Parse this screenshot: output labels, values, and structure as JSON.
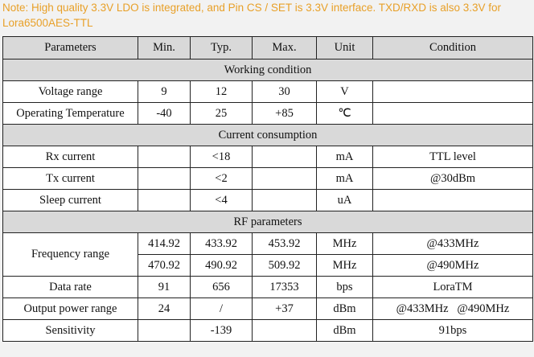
{
  "note": "Note: High quality 3.3V LDO is integrated, and Pin CS / SET is 3.3V interface. TXD/RXD is also 3.3V for Lora6500AES-TTL",
  "headers": [
    "Parameters",
    "Min.",
    "Typ.",
    "Max.",
    "Unit",
    "Condition"
  ],
  "sections": {
    "working": "Working condition",
    "current": "Current consumption",
    "rf": "RF parameters"
  },
  "rows": {
    "voltage": {
      "param": "Voltage range",
      "min": "9",
      "typ": "12",
      "max": "30",
      "unit": "V",
      "cond": ""
    },
    "temp": {
      "param": "Operating Temperature",
      "min": "-40",
      "typ": "25",
      "max": "+85",
      "unit": "℃",
      "cond": ""
    },
    "rx": {
      "param": "Rx current",
      "min": "",
      "typ": "<18",
      "max": "",
      "unit": "mA",
      "cond": "TTL level"
    },
    "tx": {
      "param": "Tx current",
      "min": "",
      "typ": "<2",
      "max": "",
      "unit": "mA",
      "cond": "@30dBm"
    },
    "sleep": {
      "param": "Sleep current",
      "min": "",
      "typ": "<4",
      "max": "",
      "unit": "uA",
      "cond": ""
    },
    "freq": {
      "param": "Frequency range",
      "r1": {
        "min": "414.92",
        "typ": "433.92",
        "max": "453.92",
        "unit": "MHz",
        "cond": "@433MHz"
      },
      "r2": {
        "min": "470.92",
        "typ": "490.92",
        "max": "509.92",
        "unit": "MHz",
        "cond": "@490MHz"
      }
    },
    "datarate": {
      "param": "Data rate",
      "min": "91",
      "typ": "656",
      "max": "17353",
      "unit": "bps",
      "cond": "LoraTM"
    },
    "power": {
      "param": "Output power range",
      "min": "24",
      "typ": "/",
      "max": "+37",
      "unit": "dBm",
      "cond": "@433MHz   @490MHz"
    },
    "sens": {
      "param": "Sensitivity",
      "min": "",
      "typ": "-139",
      "max": "",
      "unit": "dBm",
      "cond": "91bps"
    }
  }
}
